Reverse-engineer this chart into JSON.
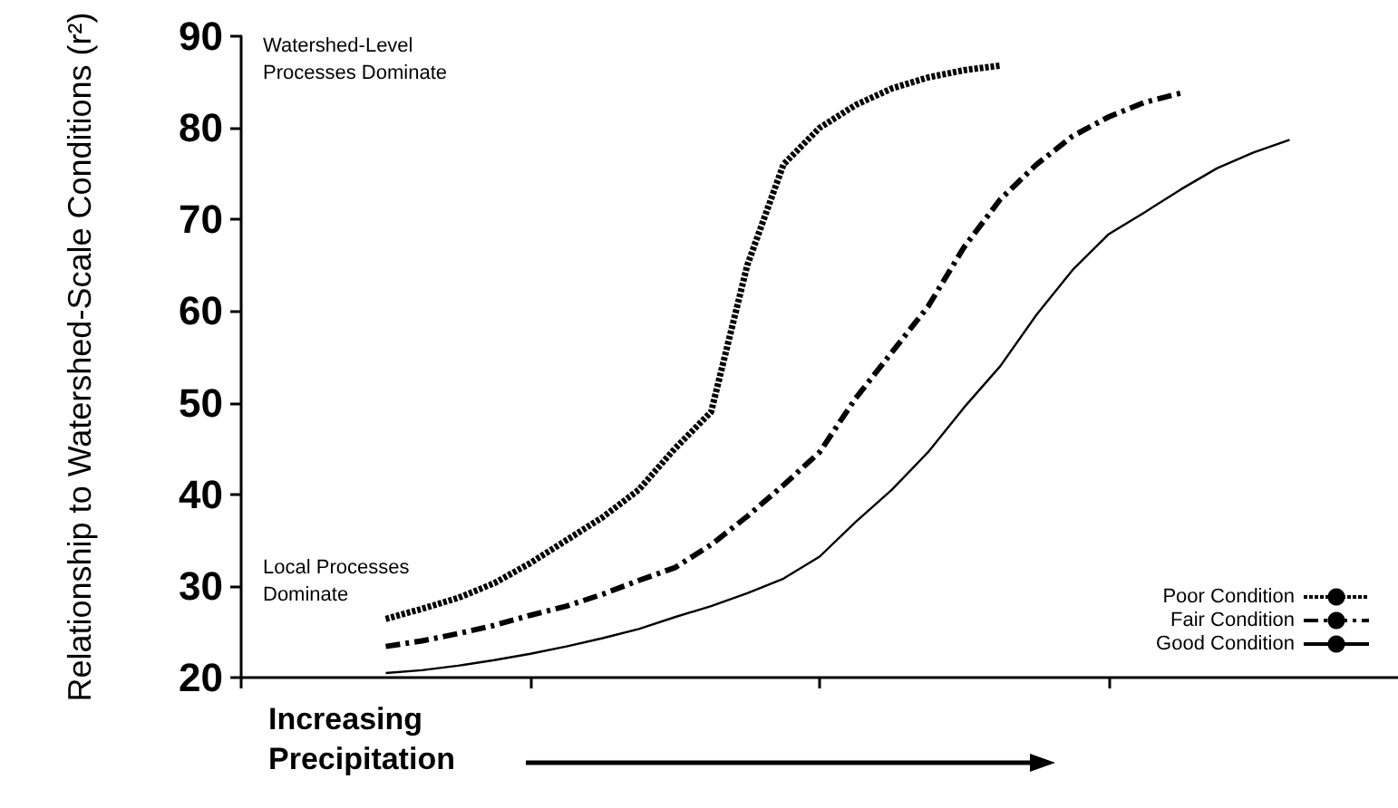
{
  "chart_data": {
    "type": "line",
    "xlabel": "Increasing Precipitation",
    "ylabel": "Relationship to Watershed-Scale Conditions (r²)",
    "annotations": [
      "Watershed-Level Processes Dominate",
      "Local Processes Dominate"
    ],
    "categories": [
      null,
      null,
      null,
      null,
      null,
      null,
      null,
      null,
      null,
      null,
      null,
      null,
      null,
      null,
      null,
      null,
      null,
      null,
      null,
      null,
      null,
      null,
      null,
      null,
      null,
      null,
      null,
      null,
      null,
      null,
      null,
      null,
      null
    ],
    "series": [
      {
        "name": "Poor Condition",
        "color": "#000000",
        "line_style": "dotted",
        "values": [
          null,
          null,
          null,
          null,
          26.4,
          27.5,
          28.7,
          30.3,
          32.5,
          35,
          37.5,
          40.5,
          45,
          49,
          65,
          76,
          80,
          82.5,
          84.3,
          85.5,
          86.3,
          86.8,
          null,
          null,
          null,
          null,
          null,
          null,
          null,
          null,
          null,
          null,
          null
        ]
      },
      {
        "name": "Fair Condition",
        "color": "#000000",
        "line_style": "dashed",
        "values": [
          null,
          null,
          null,
          null,
          23.4,
          24,
          24.8,
          25.7,
          26.8,
          27.8,
          29.1,
          30.6,
          32,
          34.5,
          37.6,
          41,
          44.6,
          50.5,
          55.5,
          60.5,
          67,
          72.2,
          76,
          79.1,
          81.2,
          82.8,
          83.8,
          null,
          null,
          null,
          null,
          null,
          null
        ]
      },
      {
        "name": "Good Condition",
        "color": "#000000",
        "line_style": "solid",
        "values": [
          null,
          null,
          null,
          null,
          20.5,
          20.8,
          21.3,
          21.9,
          22.6,
          23.4,
          24.3,
          25.3,
          26.6,
          27.8,
          29.2,
          30.8,
          33.2,
          37,
          40.5,
          44.6,
          49.5,
          54,
          59.6,
          64.5,
          68.4,
          70.8,
          73.3,
          75.6,
          77.3,
          78.7,
          null,
          null,
          null
        ]
      }
    ],
    "ylim": [
      20,
      90
    ],
    "yticks": [
      20,
      30,
      40,
      50,
      60,
      70,
      80,
      90
    ],
    "tick_labels": "y",
    "grid": false,
    "legend": "bottom right",
    "marker": "none"
  }
}
